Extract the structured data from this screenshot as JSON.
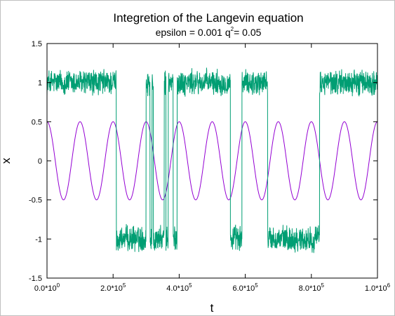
{
  "chart_data": {
    "type": "line",
    "title": "Integretion of the Langevin equation",
    "subtitle": {
      "prefix": "epsilon = 0.001 q",
      "sup": "2",
      "suffix": "= 0.05"
    },
    "xlabel": "t",
    "ylabel": "x",
    "xlim": [
      0,
      1000000
    ],
    "ylim": [
      -1.5,
      1.5
    ],
    "grid": false,
    "x_ticks": [
      {
        "value": 0,
        "base": "0.0*10",
        "exp": "0"
      },
      {
        "value": 200000,
        "base": "2.0*10",
        "exp": "5"
      },
      {
        "value": 400000,
        "base": "4.0*10",
        "exp": "5"
      },
      {
        "value": 600000,
        "base": "6.0*10",
        "exp": "5"
      },
      {
        "value": 800000,
        "base": "8.0*10",
        "exp": "5"
      },
      {
        "value": 1000000,
        "base": "1.0*10",
        "exp": "6"
      }
    ],
    "y_ticks": [
      {
        "value": 1.5,
        "label": "1.5"
      },
      {
        "value": 1,
        "label": "1"
      },
      {
        "value": 0.5,
        "label": "0.5"
      },
      {
        "value": 0,
        "label": "0"
      },
      {
        "value": -0.5,
        "label": "-0.5"
      },
      {
        "value": -1,
        "label": "-1"
      },
      {
        "value": -1.5,
        "label": "-1.5"
      }
    ],
    "series": [
      {
        "color": "#9400d3",
        "function": "sine",
        "amplitude": 0.5,
        "period": 100000,
        "peak_at": 0
      },
      {
        "color": "#009e73",
        "function": "noisy_two_state",
        "noise_amplitude": 0.13,
        "states": [
          {
            "start": 0,
            "end": 210000,
            "level": 1
          },
          {
            "start": 210000,
            "end": 300000,
            "level": -1
          },
          {
            "start": 300000,
            "end": 312000,
            "level": 1
          },
          {
            "start": 312000,
            "end": 318000,
            "level": -1
          },
          {
            "start": 318000,
            "end": 322000,
            "level": 1
          },
          {
            "start": 322000,
            "end": 355000,
            "level": -1
          },
          {
            "start": 355000,
            "end": 360000,
            "level": 1
          },
          {
            "start": 360000,
            "end": 367000,
            "level": -1
          },
          {
            "start": 367000,
            "end": 382000,
            "level": 1
          },
          {
            "start": 382000,
            "end": 394000,
            "level": -1
          },
          {
            "start": 394000,
            "end": 555000,
            "level": 1
          },
          {
            "start": 555000,
            "end": 590000,
            "level": -1
          },
          {
            "start": 590000,
            "end": 668000,
            "level": 1
          },
          {
            "start": 668000,
            "end": 825000,
            "level": -1
          },
          {
            "start": 825000,
            "end": 1000000,
            "level": 1
          }
        ]
      }
    ]
  }
}
